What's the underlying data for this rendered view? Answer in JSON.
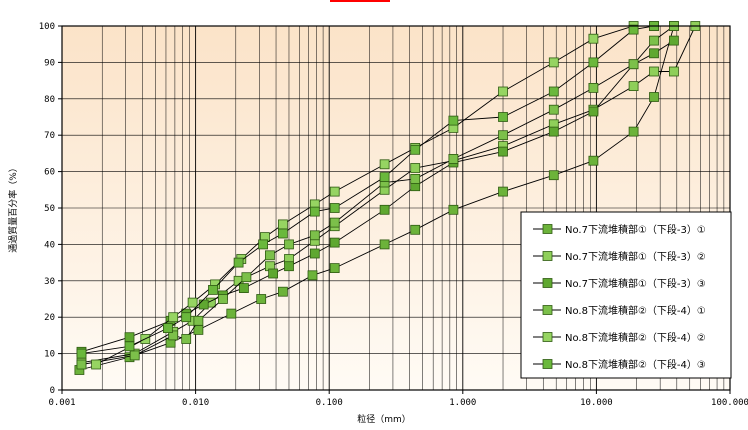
{
  "chart_data": {
    "type": "scatter",
    "x_scale": "log",
    "xlim": [
      0.001,
      100
    ],
    "ylim": [
      0,
      100
    ],
    "xlabel": "粒径（mm）",
    "ylabel": "通過質量百分率（%）",
    "x_ticks": [
      "0.001",
      "0.010",
      "0.100",
      "1.000",
      "10.000",
      "100.000"
    ],
    "y_ticks": [
      "0",
      "10",
      "20",
      "30",
      "40",
      "50",
      "60",
      "70",
      "80",
      "90",
      "100"
    ],
    "grid": true,
    "legend_position": "bottom-right",
    "colors": {
      "background_top": "#fbe3c8",
      "background_bottom": "#fffbf5",
      "line": "#000000",
      "marker_light": "#8fcf5a",
      "marker_mid": "#6cb33a",
      "marker_dark": "#4f9a2a",
      "marker_stroke": "#2f5a12",
      "title": "#ff0000"
    },
    "series": [
      {
        "name": "No.7下流堆積部①（下段-3）①",
        "color": "#6cb33a",
        "points": [
          [
            0.00135,
            5.5
          ],
          [
            0.0032,
            9
          ],
          [
            0.0065,
            13
          ],
          [
            0.0105,
            16.5
          ],
          [
            0.0185,
            21
          ],
          [
            0.031,
            25
          ],
          [
            0.045,
            27
          ],
          [
            0.075,
            31.5
          ],
          [
            0.11,
            33.5
          ],
          [
            0.26,
            40
          ],
          [
            0.44,
            44
          ],
          [
            0.85,
            49.5
          ],
          [
            2.0,
            54.5
          ],
          [
            4.8,
            59
          ],
          [
            9.5,
            63
          ],
          [
            19,
            71
          ],
          [
            27,
            80.5
          ],
          [
            38,
            100
          ]
        ]
      },
      {
        "name": "No.7下流堆積部①（下段-3）②",
        "color": "#8fcf5a",
        "points": [
          [
            0.0014,
            7.5
          ],
          [
            0.0035,
            10
          ],
          [
            0.0068,
            16
          ],
          [
            0.0095,
            19
          ],
          [
            0.013,
            24
          ],
          [
            0.021,
            30
          ],
          [
            0.036,
            34
          ],
          [
            0.05,
            36
          ],
          [
            0.078,
            41
          ],
          [
            0.11,
            45
          ],
          [
            0.26,
            55
          ],
          [
            0.44,
            61
          ],
          [
            0.85,
            63
          ],
          [
            2.0,
            67
          ],
          [
            4.8,
            73
          ],
          [
            9.5,
            77
          ],
          [
            19,
            83.5
          ],
          [
            27,
            87.5
          ],
          [
            38,
            87.5
          ],
          [
            55,
            100
          ]
        ]
      },
      {
        "name": "No.7下流堆積部①（下段-3）③",
        "color": "#5fa830",
        "points": [
          [
            0.0014,
            10.5
          ],
          [
            0.0032,
            14.5
          ],
          [
            0.0065,
            19
          ],
          [
            0.0085,
            21
          ],
          [
            0.0115,
            23.5
          ],
          [
            0.016,
            26
          ],
          [
            0.023,
            28
          ],
          [
            0.038,
            32
          ],
          [
            0.05,
            34
          ],
          [
            0.078,
            37.5
          ],
          [
            0.11,
            40.5
          ],
          [
            0.26,
            49.5
          ],
          [
            0.44,
            56
          ],
          [
            0.85,
            62.5
          ],
          [
            2.0,
            65.5
          ],
          [
            4.8,
            71
          ],
          [
            9.5,
            76.5
          ],
          [
            19,
            89.5
          ],
          [
            27,
            92.5
          ],
          [
            38,
            96
          ]
        ]
      },
      {
        "name": "No.8下流堆積部②（下段-4）①",
        "color": "#7cc04a",
        "points": [
          [
            0.0014,
            7
          ],
          [
            0.0035,
            9.5
          ],
          [
            0.0068,
            15
          ],
          [
            0.0085,
            14
          ],
          [
            0.0105,
            19
          ],
          [
            0.016,
            25
          ],
          [
            0.024,
            31
          ],
          [
            0.036,
            37
          ],
          [
            0.05,
            40
          ],
          [
            0.078,
            42.5
          ],
          [
            0.11,
            46
          ],
          [
            0.26,
            57
          ],
          [
            0.44,
            58
          ],
          [
            0.85,
            63.5
          ],
          [
            2.0,
            70
          ],
          [
            4.8,
            77
          ],
          [
            9.5,
            83
          ],
          [
            19,
            89.5
          ],
          [
            27,
            96
          ],
          [
            38,
            100
          ]
        ]
      },
      {
        "name": "No.8下流堆積部②（下段-4）②",
        "color": "#96d462",
        "points": [
          [
            0.0018,
            7
          ],
          [
            0.0042,
            14
          ],
          [
            0.0068,
            20
          ],
          [
            0.0095,
            24
          ],
          [
            0.014,
            29
          ],
          [
            0.022,
            36
          ],
          [
            0.033,
            42
          ],
          [
            0.045,
            45.5
          ],
          [
            0.078,
            51
          ],
          [
            0.11,
            54.5
          ],
          [
            0.26,
            62
          ],
          [
            0.44,
            66.5
          ],
          [
            0.85,
            72
          ],
          [
            2.0,
            82
          ],
          [
            4.8,
            90
          ],
          [
            9.5,
            96.5
          ],
          [
            19,
            100
          ],
          [
            27,
            100
          ]
        ]
      },
      {
        "name": "No.8下流堆積部②（下段-4）③",
        "color": "#6ab83c",
        "points": [
          [
            0.0014,
            10
          ],
          [
            0.0032,
            12
          ],
          [
            0.0062,
            17
          ],
          [
            0.0085,
            20
          ],
          [
            0.0135,
            27.5
          ],
          [
            0.021,
            35
          ],
          [
            0.032,
            40
          ],
          [
            0.045,
            43
          ],
          [
            0.078,
            49
          ],
          [
            0.11,
            50
          ],
          [
            0.26,
            58.5
          ],
          [
            0.44,
            66
          ],
          [
            0.85,
            74
          ],
          [
            2.0,
            75
          ],
          [
            4.8,
            82
          ],
          [
            9.5,
            90
          ],
          [
            19,
            99
          ],
          [
            27,
            100
          ]
        ]
      }
    ]
  }
}
